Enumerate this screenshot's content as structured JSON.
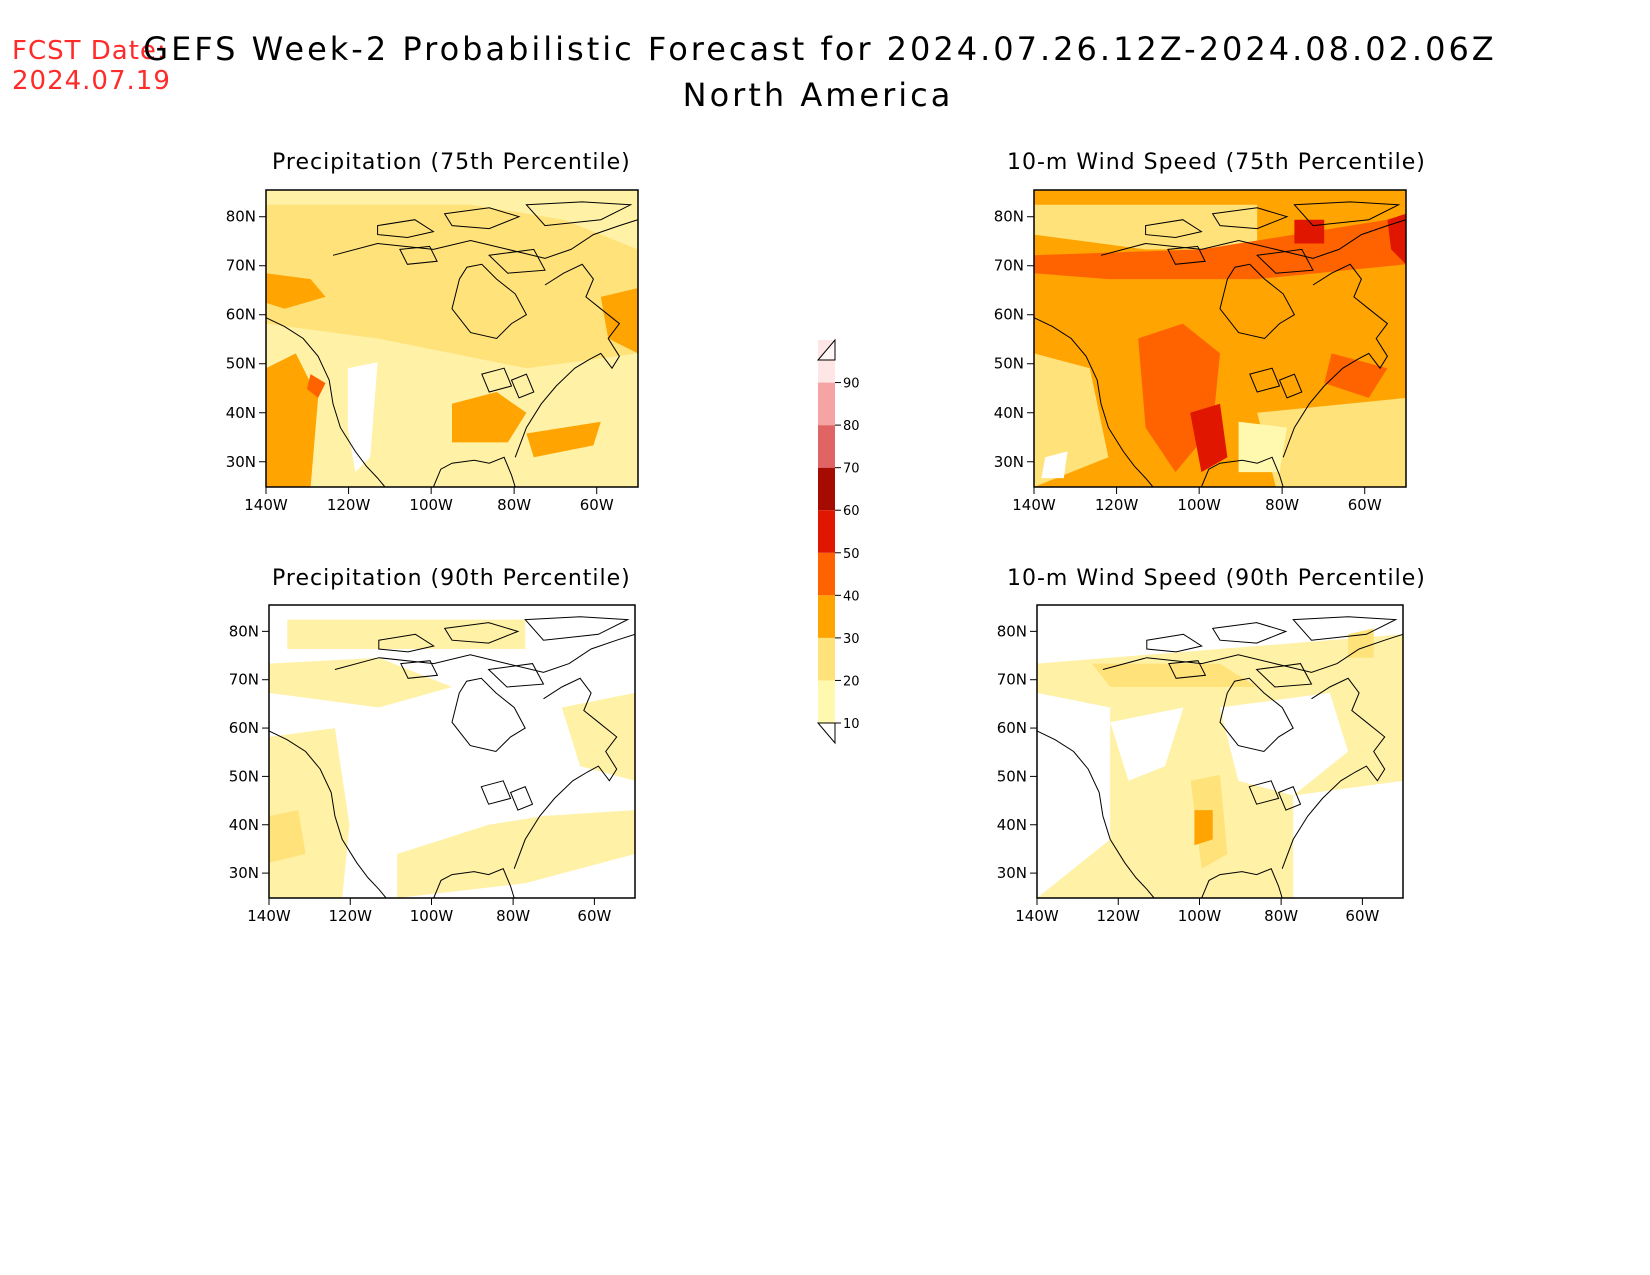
{
  "fcst_date": {
    "label": "FCST Date:",
    "value": "2024.07.19"
  },
  "title": {
    "line1": "GEFS Week-2 Probabilistic Forecast for 2024.07.26.12Z-2024.08.02.06Z",
    "line2": "North America"
  },
  "panels": [
    {
      "id": "precip75",
      "title": "Precipitation (75th Percentile)"
    },
    {
      "id": "wind75",
      "title": "10-m Wind Speed (75th Percentile)"
    },
    {
      "id": "precip90",
      "title": "Precipitation (90th Percentile)"
    },
    {
      "id": "wind90",
      "title": "10-m Wind Speed (90th Percentile)"
    }
  ],
  "lat_ticks": [
    "80N",
    "70N",
    "60N",
    "50N",
    "40N",
    "30N"
  ],
  "lon_ticks": [
    "140W",
    "120W",
    "100W",
    "80W",
    "60W"
  ],
  "colorbar": {
    "levels": [
      "10",
      "20",
      "30",
      "40",
      "50",
      "60",
      "70",
      "80",
      "90"
    ],
    "colors": [
      "#fff9b0",
      "#ffe27a",
      "#ffa400",
      "#ff6300",
      "#e01600",
      "#a50b00",
      "#e06464",
      "#f5a3a3",
      "#ffe6e6"
    ]
  },
  "fields": {
    "precip75": {
      "base": "#fff1a6",
      "blobs": [
        {
          "c": "#ffe27a",
          "pts": [
            [
              0,
              0.05
            ],
            [
              0.55,
              0.05
            ],
            [
              0.8,
              0.1
            ],
            [
              1,
              0.2
            ],
            [
              1,
              0.55
            ],
            [
              0.7,
              0.6
            ],
            [
              0.3,
              0.5
            ],
            [
              0,
              0.45
            ]
          ]
        },
        {
          "c": "#ffa400",
          "pts": [
            [
              0,
              0.28
            ],
            [
              0.12,
              0.3
            ],
            [
              0.16,
              0.36
            ],
            [
              0.05,
              0.4
            ],
            [
              0,
              0.38
            ]
          ]
        },
        {
          "c": "#ffa400",
          "pts": [
            [
              0.9,
              0.36
            ],
            [
              1,
              0.33
            ],
            [
              1,
              0.55
            ],
            [
              0.92,
              0.5
            ]
          ]
        },
        {
          "c": "#ffa400",
          "pts": [
            [
              0,
              0.6
            ],
            [
              0.08,
              0.55
            ],
            [
              0.14,
              0.7
            ],
            [
              0.12,
              1
            ],
            [
              0,
              1
            ]
          ]
        },
        {
          "c": "#ffa400",
          "pts": [
            [
              0.5,
              0.72
            ],
            [
              0.62,
              0.68
            ],
            [
              0.7,
              0.75
            ],
            [
              0.65,
              0.85
            ],
            [
              0.5,
              0.85
            ]
          ]
        },
        {
          "c": "#ffa400",
          "pts": [
            [
              0.7,
              0.82
            ],
            [
              0.9,
              0.78
            ],
            [
              0.88,
              0.86
            ],
            [
              0.72,
              0.9
            ]
          ]
        },
        {
          "c": "#ff6300",
          "pts": [
            [
              0.12,
              0.62
            ],
            [
              0.16,
              0.65
            ],
            [
              0.14,
              0.7
            ],
            [
              0.11,
              0.67
            ]
          ]
        },
        {
          "c": "#ffffff",
          "pts": [
            [
              0.22,
              0.6
            ],
            [
              0.3,
              0.58
            ],
            [
              0.28,
              0.9
            ],
            [
              0.24,
              0.95
            ],
            [
              0.22,
              0.8
            ]
          ]
        }
      ]
    },
    "wind75": {
      "base": "#ffa400",
      "blobs": [
        {
          "c": "#ffe27a",
          "pts": [
            [
              0,
              0.05
            ],
            [
              0.6,
              0.05
            ],
            [
              0.6,
              0.2
            ],
            [
              0.3,
              0.2
            ],
            [
              0,
              0.15
            ]
          ]
        },
        {
          "c": "#ffe27a",
          "pts": [
            [
              0,
              0.55
            ],
            [
              0.15,
              0.6
            ],
            [
              0.2,
              0.9
            ],
            [
              0,
              1
            ]
          ]
        },
        {
          "c": "#ffe27a",
          "pts": [
            [
              0.6,
              0.75
            ],
            [
              1,
              0.7
            ],
            [
              1,
              1
            ],
            [
              0.65,
              1
            ]
          ]
        },
        {
          "c": "#ff6300",
          "pts": [
            [
              0,
              0.22
            ],
            [
              0.45,
              0.2
            ],
            [
              0.7,
              0.15
            ],
            [
              0.95,
              0.1
            ],
            [
              1,
              0.25
            ],
            [
              0.6,
              0.3
            ],
            [
              0.2,
              0.3
            ],
            [
              0,
              0.28
            ]
          ]
        },
        {
          "c": "#ff6300",
          "pts": [
            [
              0.28,
              0.5
            ],
            [
              0.4,
              0.45
            ],
            [
              0.5,
              0.55
            ],
            [
              0.48,
              0.8
            ],
            [
              0.38,
              0.95
            ],
            [
              0.3,
              0.8
            ]
          ]
        },
        {
          "c": "#ff6300",
          "pts": [
            [
              0.8,
              0.55
            ],
            [
              0.95,
              0.6
            ],
            [
              0.9,
              0.7
            ],
            [
              0.78,
              0.65
            ]
          ]
        },
        {
          "c": "#e01600",
          "pts": [
            [
              0.42,
              0.75
            ],
            [
              0.5,
              0.72
            ],
            [
              0.52,
              0.9
            ],
            [
              0.45,
              0.95
            ]
          ]
        },
        {
          "c": "#e01600",
          "pts": [
            [
              0.7,
              0.1
            ],
            [
              0.78,
              0.1
            ],
            [
              0.78,
              0.18
            ],
            [
              0.7,
              0.18
            ]
          ]
        },
        {
          "c": "#e01600",
          "pts": [
            [
              0.95,
              0.1
            ],
            [
              1,
              0.08
            ],
            [
              1,
              0.25
            ],
            [
              0.96,
              0.2
            ]
          ]
        },
        {
          "c": "#fff9b0",
          "pts": [
            [
              0.55,
              0.78
            ],
            [
              0.68,
              0.8
            ],
            [
              0.66,
              0.95
            ],
            [
              0.55,
              0.95
            ]
          ]
        },
        {
          "c": "#ffffff",
          "pts": [
            [
              0.03,
              0.9
            ],
            [
              0.09,
              0.88
            ],
            [
              0.08,
              0.97
            ],
            [
              0.02,
              0.97
            ]
          ]
        }
      ]
    },
    "precip90": {
      "base": "#ffffff",
      "blobs": [
        {
          "c": "#fff1a6",
          "pts": [
            [
              0,
              0.2
            ],
            [
              0.3,
              0.18
            ],
            [
              0.5,
              0.28
            ],
            [
              0.3,
              0.35
            ],
            [
              0,
              0.3
            ]
          ]
        },
        {
          "c": "#fff1a6",
          "pts": [
            [
              0,
              0.45
            ],
            [
              0.18,
              0.42
            ],
            [
              0.22,
              0.75
            ],
            [
              0.2,
              1
            ],
            [
              0,
              1
            ]
          ]
        },
        {
          "c": "#fff1a6",
          "pts": [
            [
              0.35,
              0.85
            ],
            [
              0.6,
              0.75
            ],
            [
              0.75,
              0.72
            ],
            [
              1,
              0.7
            ],
            [
              1,
              0.85
            ],
            [
              0.7,
              0.95
            ],
            [
              0.35,
              1
            ]
          ]
        },
        {
          "c": "#fff1a6",
          "pts": [
            [
              0.8,
              0.35
            ],
            [
              1,
              0.3
            ],
            [
              1,
              0.6
            ],
            [
              0.85,
              0.55
            ]
          ]
        },
        {
          "c": "#fff1a6",
          "pts": [
            [
              0.05,
              0.05
            ],
            [
              0.7,
              0.05
            ],
            [
              0.7,
              0.15
            ],
            [
              0.05,
              0.15
            ]
          ]
        },
        {
          "c": "#ffe27a",
          "pts": [
            [
              0,
              0.72
            ],
            [
              0.08,
              0.7
            ],
            [
              0.1,
              0.85
            ],
            [
              0,
              0.88
            ]
          ]
        }
      ]
    },
    "wind90": {
      "base": "#fff1a6",
      "blobs": [
        {
          "c": "#ffffff",
          "pts": [
            [
              0,
              0
            ],
            [
              1,
              0
            ],
            [
              1,
              0.1
            ],
            [
              0,
              0.2
            ]
          ]
        },
        {
          "c": "#ffffff",
          "pts": [
            [
              0,
              0.3
            ],
            [
              0.2,
              0.35
            ],
            [
              0.2,
              0.8
            ],
            [
              0,
              1
            ]
          ]
        },
        {
          "c": "#ffffff",
          "pts": [
            [
              0.5,
              0.35
            ],
            [
              0.8,
              0.3
            ],
            [
              0.85,
              0.5
            ],
            [
              0.7,
              0.65
            ],
            [
              0.55,
              0.6
            ]
          ]
        },
        {
          "c": "#ffffff",
          "pts": [
            [
              0.7,
              0.65
            ],
            [
              1,
              0.6
            ],
            [
              1,
              1
            ],
            [
              0.7,
              1
            ]
          ]
        },
        {
          "c": "#ffffff",
          "pts": [
            [
              0.2,
              0.4
            ],
            [
              0.4,
              0.35
            ],
            [
              0.35,
              0.55
            ],
            [
              0.25,
              0.6
            ]
          ]
        },
        {
          "c": "#ffe27a",
          "pts": [
            [
              0.42,
              0.6
            ],
            [
              0.5,
              0.58
            ],
            [
              0.52,
              0.85
            ],
            [
              0.45,
              0.9
            ]
          ]
        },
        {
          "c": "#ffa400",
          "pts": [
            [
              0.43,
              0.7
            ],
            [
              0.48,
              0.7
            ],
            [
              0.48,
              0.8
            ],
            [
              0.43,
              0.82
            ]
          ]
        },
        {
          "c": "#ffe27a",
          "pts": [
            [
              0.15,
              0.2
            ],
            [
              0.5,
              0.2
            ],
            [
              0.6,
              0.28
            ],
            [
              0.2,
              0.28
            ]
          ]
        },
        {
          "c": "#ffe27a",
          "pts": [
            [
              0.85,
              0.1
            ],
            [
              0.92,
              0.08
            ],
            [
              0.92,
              0.18
            ],
            [
              0.85,
              0.18
            ]
          ]
        }
      ]
    }
  }
}
